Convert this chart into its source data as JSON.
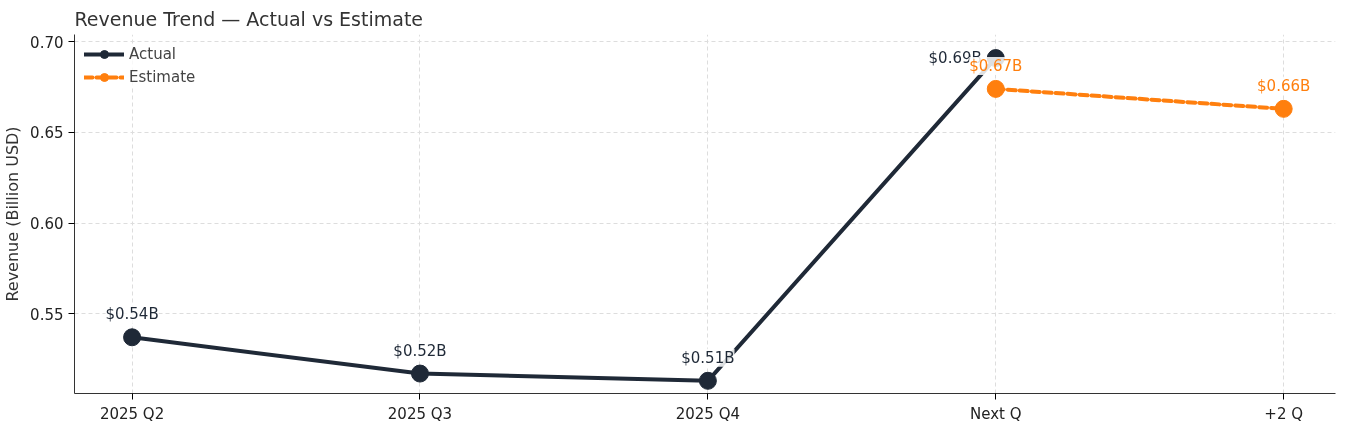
{
  "chart_data": {
    "type": "line",
    "title": "Revenue Trend — Actual vs Estimate",
    "ylabel": "Revenue (Billion USD)",
    "categories": [
      "2025 Q2",
      "2025 Q3",
      "2025 Q4",
      "Next Q",
      "+2 Q"
    ],
    "series": [
      {
        "name": "Actual",
        "color": "#1f2937",
        "line_style": "solid",
        "values": [
          0.537,
          0.517,
          0.513,
          0.691,
          null
        ],
        "value_labels": [
          "$0.54B",
          "$0.52B",
          "$0.51B",
          "$0.69B",
          null
        ]
      },
      {
        "name": "Estimate",
        "color": "#ff7f0e",
        "line_style": "dashed",
        "values": [
          null,
          null,
          null,
          0.674,
          0.663
        ],
        "value_labels": [
          null,
          null,
          null,
          "$0.67B",
          "$0.66B"
        ]
      }
    ],
    "ylim": [
      0.506,
      0.704
    ],
    "yticks": [
      {
        "value": 0.55,
        "label": "0.55"
      },
      {
        "value": 0.6,
        "label": "0.60"
      },
      {
        "value": 0.65,
        "label": "0.65"
      },
      {
        "value": 0.7,
        "label": "0.70"
      }
    ],
    "grid": true,
    "legend": "top left",
    "marker": "circle"
  }
}
